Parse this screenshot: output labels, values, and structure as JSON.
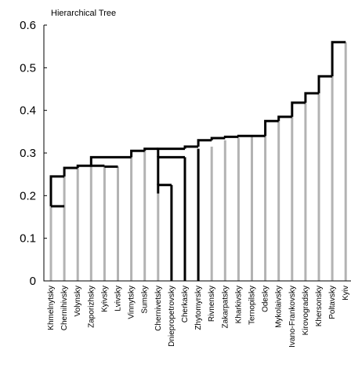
{
  "chart_data": {
    "type": "bar",
    "title": "Hierarchical Tree",
    "xlabel": "",
    "ylabel": "",
    "ylim": [
      0,
      0.6
    ],
    "yticks": [
      0,
      0.1,
      0.2,
      0.3,
      0.4,
      0.5,
      0.6
    ],
    "ytick_labels": [
      "0",
      "0.1",
      "0.2",
      "0.3",
      "0.4",
      "0.5",
      "0.6"
    ],
    "grid": false,
    "categories": [
      "Khmelnytsky",
      "Chernihivsky",
      "Volynsky",
      "Zaporizhsky",
      "Kyivsky",
      "Lvivsky",
      "Vinnytsky",
      "Sumsky",
      "Chernivetsky",
      "Dniepropetrovsky",
      "Cherkasky",
      "Zhytomyrsky",
      "Rivnensky",
      "Zakarpatsky",
      "Kharkivsky",
      "Ternopilsky",
      "Odesky",
      "Mykolaivsky",
      "Ivano-Frankovsky",
      "Kirovogradsky",
      "Khersonsky",
      "Poltavsky",
      "Kyiv"
    ],
    "bar_heights": [
      0.175,
      0.245,
      0.265,
      0.27,
      0.27,
      0.268,
      0.29,
      0.305,
      0.205,
      0.225,
      0.29,
      0.31,
      0.315,
      0.33,
      0.335,
      0.338,
      0.34,
      0.375,
      0.385,
      0.418,
      0.44,
      0.48,
      0.56
    ],
    "dark_stems": [
      {
        "x": "Dniepropetrovsky",
        "from": 0,
        "to": 0.225
      },
      {
        "x": "Cherkasky",
        "from": 0,
        "to": 0.29
      },
      {
        "x": "Zhytomyrsky",
        "from": 0,
        "to": 0.31
      }
    ],
    "links": [
      {
        "x1": "Khmelnytsky",
        "x2": "Chernihivsky",
        "h": 0.175,
        "y1": 0.175,
        "y2": 0.175
      },
      {
        "x1": "Khmelnytsky",
        "x2": "Chernihivsky",
        "h": 0.245,
        "y1": 0.175,
        "y2": 0.245
      },
      {
        "x1": "Chernihivsky",
        "x2": "Volynsky",
        "h": 0.265,
        "y1": 0.245,
        "y2": 0.265
      },
      {
        "x1": "Volynsky",
        "x2": "Kyivsky",
        "h": 0.27,
        "y1": 0.265,
        "y2": 0.27
      },
      {
        "x1": "Kyivsky",
        "x2": "Lvivsky",
        "h": 0.268,
        "y1": 0.268,
        "y2": 0.268
      },
      {
        "x1": "Zaporizhsky",
        "x2": "Vinnytsky",
        "h": 0.29,
        "y1": 0.27,
        "y2": 0.29
      },
      {
        "x1": "Vinnytsky",
        "x2": "Sumsky",
        "h": 0.305,
        "y1": 0.29,
        "y2": 0.305
      },
      {
        "x1": "Chernivetsky",
        "x2": "Dniepropetrovsky",
        "h": 0.225,
        "y1": 0.205,
        "y2": 0.225
      },
      {
        "x1": "Chernivetsky",
        "x2": "Cherkasky",
        "h": 0.29,
        "y1": 0.225,
        "y2": 0.29
      },
      {
        "x1": "Chernivetsky",
        "x2": "Cherkasky",
        "h": 0.31,
        "y1": 0.29,
        "y2": 0.31
      },
      {
        "x1": "Sumsky",
        "x2": "Chernivetsky",
        "h": 0.31,
        "y1": 0.305,
        "y2": 0.31
      },
      {
        "x1": "Cherkasky",
        "x2": "Zhytomyrsky",
        "h": 0.315,
        "y1": 0.31,
        "y2": 0.315
      },
      {
        "x1": "Zhytomyrsky",
        "x2": "Rivnensky",
        "h": 0.33,
        "y1": 0.315,
        "y2": 0.33
      },
      {
        "x1": "Rivnensky",
        "x2": "Zakarpatsky",
        "h": 0.335,
        "y1": 0.33,
        "y2": 0.335
      },
      {
        "x1": "Zakarpatsky",
        "x2": "Kharkivsky",
        "h": 0.338,
        "y1": 0.335,
        "y2": 0.338
      },
      {
        "x1": "Kharkivsky",
        "x2": "Ternopilsky",
        "h": 0.34,
        "y1": 0.338,
        "y2": 0.34
      },
      {
        "x1": "Ternopilsky",
        "x2": "Odesky",
        "h": 0.34,
        "y1": 0.34,
        "y2": 0.34
      },
      {
        "x1": "Odesky",
        "x2": "Mykolaivsky",
        "h": 0.375,
        "y1": 0.34,
        "y2": 0.375
      },
      {
        "x1": "Mykolaivsky",
        "x2": "Ivano-Frankovsky",
        "h": 0.385,
        "y1": 0.375,
        "y2": 0.385
      },
      {
        "x1": "Ivano-Frankovsky",
        "x2": "Kirovogradsky",
        "h": 0.418,
        "y1": 0.385,
        "y2": 0.418
      },
      {
        "x1": "Kirovogradsky",
        "x2": "Khersonsky",
        "h": 0.44,
        "y1": 0.418,
        "y2": 0.44
      },
      {
        "x1": "Khersonsky",
        "x2": "Poltavsky",
        "h": 0.48,
        "y1": 0.44,
        "y2": 0.48
      },
      {
        "x1": "Poltavsky",
        "x2": "Kyiv",
        "h": 0.56,
        "y1": 0.48,
        "y2": 0.56
      }
    ],
    "colors": {
      "bar": "#b3b3b3",
      "link": "#000000",
      "axis": "#000000"
    }
  }
}
